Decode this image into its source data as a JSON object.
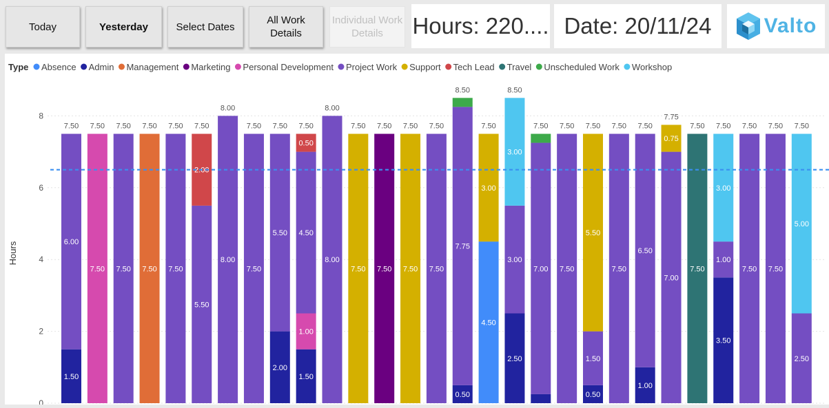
{
  "buttons": {
    "today": "Today",
    "yesterday": "Yesterday",
    "select_dates": "Select Dates",
    "all_work_details": [
      "All Work",
      "Details"
    ],
    "individual_work_details": [
      "Individual Work",
      "Details"
    ]
  },
  "cards": {
    "hours": "Hours: 220....",
    "date": "Date: 20/11/24"
  },
  "logo": {
    "text": "Valto"
  },
  "chart_data": {
    "type": "bar",
    "stacked": true,
    "legend": {
      "title": "Type",
      "placement": "top-left",
      "items": [
        {
          "name": "Absence",
          "color": "#418CFA"
        },
        {
          "name": "Admin",
          "color": "#21239F"
        },
        {
          "name": "Management",
          "color": "#E06D37"
        },
        {
          "name": "Marketing",
          "color": "#6A0080"
        },
        {
          "name": "Personal Development",
          "color": "#D64AAE"
        },
        {
          "name": "Project Work",
          "color": "#744EC2"
        },
        {
          "name": "Support",
          "color": "#D4B000"
        },
        {
          "name": "Tech Lead",
          "color": "#D0474A"
        },
        {
          "name": "Travel",
          "color": "#2E7474"
        },
        {
          "name": "Unscheduled Work",
          "color": "#3DAA4A"
        },
        {
          "name": "Workshop",
          "color": "#4FC6F0"
        }
      ]
    },
    "ylabel": "Hours",
    "ylim": [
      0,
      8.5
    ],
    "yticks": [
      0,
      2,
      4,
      6,
      8
    ],
    "grid": true,
    "average_line": 6.5,
    "bars": [
      {
        "total": "7.50",
        "segments": [
          {
            "type": "Admin",
            "value": 1.5,
            "label": "1.50"
          },
          {
            "type": "Project Work",
            "value": 6.0,
            "label": "6.00"
          }
        ]
      },
      {
        "total": "7.50",
        "segments": [
          {
            "type": "Personal Development",
            "value": 7.5,
            "label": "7.50"
          }
        ]
      },
      {
        "total": "7.50",
        "segments": [
          {
            "type": "Project Work",
            "value": 7.5,
            "label": "7.50"
          }
        ]
      },
      {
        "total": "7.50",
        "segments": [
          {
            "type": "Management",
            "value": 7.5,
            "label": "7.50"
          }
        ]
      },
      {
        "total": "7.50",
        "segments": [
          {
            "type": "Project Work",
            "value": 7.5,
            "label": "7.50"
          }
        ]
      },
      {
        "total": "7.50",
        "segments": [
          {
            "type": "Project Work",
            "value": 5.5,
            "label": "5.50"
          },
          {
            "type": "Tech Lead",
            "value": 2.0,
            "label": "2.00"
          }
        ]
      },
      {
        "total": "8.00",
        "segments": [
          {
            "type": "Project Work",
            "value": 8.0,
            "label": "8.00"
          }
        ]
      },
      {
        "total": "7.50",
        "segments": [
          {
            "type": "Project Work",
            "value": 7.5,
            "label": "7.50"
          }
        ]
      },
      {
        "total": "7.50",
        "segments": [
          {
            "type": "Admin",
            "value": 2.0,
            "label": "2.00"
          },
          {
            "type": "Project Work",
            "value": 5.5,
            "label": "5.50"
          }
        ]
      },
      {
        "total": "7.50",
        "segments": [
          {
            "type": "Admin",
            "value": 1.5,
            "label": "1.50"
          },
          {
            "type": "Personal Development",
            "value": 1.0,
            "label": "1.00"
          },
          {
            "type": "Project Work",
            "value": 4.5,
            "label": "4.50"
          },
          {
            "type": "Tech Lead",
            "value": 0.5,
            "label": "0.50"
          }
        ]
      },
      {
        "total": "8.00",
        "segments": [
          {
            "type": "Project Work",
            "value": 8.0,
            "label": "8.00"
          }
        ]
      },
      {
        "total": "7.50",
        "segments": [
          {
            "type": "Support",
            "value": 7.5,
            "label": "7.50"
          }
        ]
      },
      {
        "total": "7.50",
        "segments": [
          {
            "type": "Marketing",
            "value": 7.5,
            "label": "7.50"
          }
        ]
      },
      {
        "total": "7.50",
        "segments": [
          {
            "type": "Support",
            "value": 7.5,
            "label": "7.50"
          }
        ]
      },
      {
        "total": "7.50",
        "segments": [
          {
            "type": "Project Work",
            "value": 7.5,
            "label": "7.50"
          }
        ]
      },
      {
        "total": "8.50",
        "segments": [
          {
            "type": "Admin",
            "value": 0.5,
            "label": "0.50"
          },
          {
            "type": "Project Work",
            "value": 7.75,
            "label": "7.75"
          },
          {
            "type": "Unscheduled Work",
            "value": 0.25,
            "label": ""
          }
        ]
      },
      {
        "total": "7.50",
        "segments": [
          {
            "type": "Absence",
            "value": 4.5,
            "label": "4.50"
          },
          {
            "type": "Support",
            "value": 3.0,
            "label": "3.00"
          }
        ]
      },
      {
        "total": "8.50",
        "segments": [
          {
            "type": "Admin",
            "value": 2.5,
            "label": "2.50"
          },
          {
            "type": "Project Work",
            "value": 3.0,
            "label": "3.00"
          },
          {
            "type": "Workshop",
            "value": 3.0,
            "label": "3.00"
          }
        ]
      },
      {
        "total": "7.50",
        "segments": [
          {
            "type": "Admin",
            "value": 0.25,
            "label": ""
          },
          {
            "type": "Project Work",
            "value": 7.0,
            "label": "7.00"
          },
          {
            "type": "Unscheduled Work",
            "value": 0.25,
            "label": ""
          }
        ]
      },
      {
        "total": "7.50",
        "segments": [
          {
            "type": "Project Work",
            "value": 7.5,
            "label": "7.50"
          }
        ]
      },
      {
        "total": "7.50",
        "segments": [
          {
            "type": "Admin",
            "value": 0.5,
            "label": "0.50"
          },
          {
            "type": "Project Work",
            "value": 1.5,
            "label": "1.50"
          },
          {
            "type": "Support",
            "value": 5.5,
            "label": "5.50"
          }
        ]
      },
      {
        "total": "7.50",
        "segments": [
          {
            "type": "Project Work",
            "value": 7.5,
            "label": "7.50"
          }
        ]
      },
      {
        "total": "7.50",
        "segments": [
          {
            "type": "Admin",
            "value": 1.0,
            "label": "1.00"
          },
          {
            "type": "Project Work",
            "value": 6.5,
            "label": "6.50"
          }
        ]
      },
      {
        "total": "7.75",
        "segments": [
          {
            "type": "Project Work",
            "value": 7.0,
            "label": "7.00"
          },
          {
            "type": "Support",
            "value": 0.75,
            "label": "0.75"
          }
        ]
      },
      {
        "total": "7.50",
        "segments": [
          {
            "type": "Travel",
            "value": 7.5,
            "label": "7.50"
          }
        ]
      },
      {
        "total": "7.50",
        "segments": [
          {
            "type": "Admin",
            "value": 3.5,
            "label": "3.50"
          },
          {
            "type": "Project Work",
            "value": 1.0,
            "label": "1.00"
          },
          {
            "type": "Workshop",
            "value": 3.0,
            "label": "3.00"
          }
        ]
      },
      {
        "total": "7.50",
        "segments": [
          {
            "type": "Project Work",
            "value": 7.5,
            "label": "7.50"
          }
        ]
      },
      {
        "total": "7.50",
        "segments": [
          {
            "type": "Project Work",
            "value": 7.5,
            "label": "7.50"
          }
        ]
      },
      {
        "total": "7.50",
        "segments": [
          {
            "type": "Project Work",
            "value": 2.5,
            "label": "2.50"
          },
          {
            "type": "Workshop",
            "value": 5.0,
            "label": "5.00"
          }
        ]
      }
    ]
  }
}
